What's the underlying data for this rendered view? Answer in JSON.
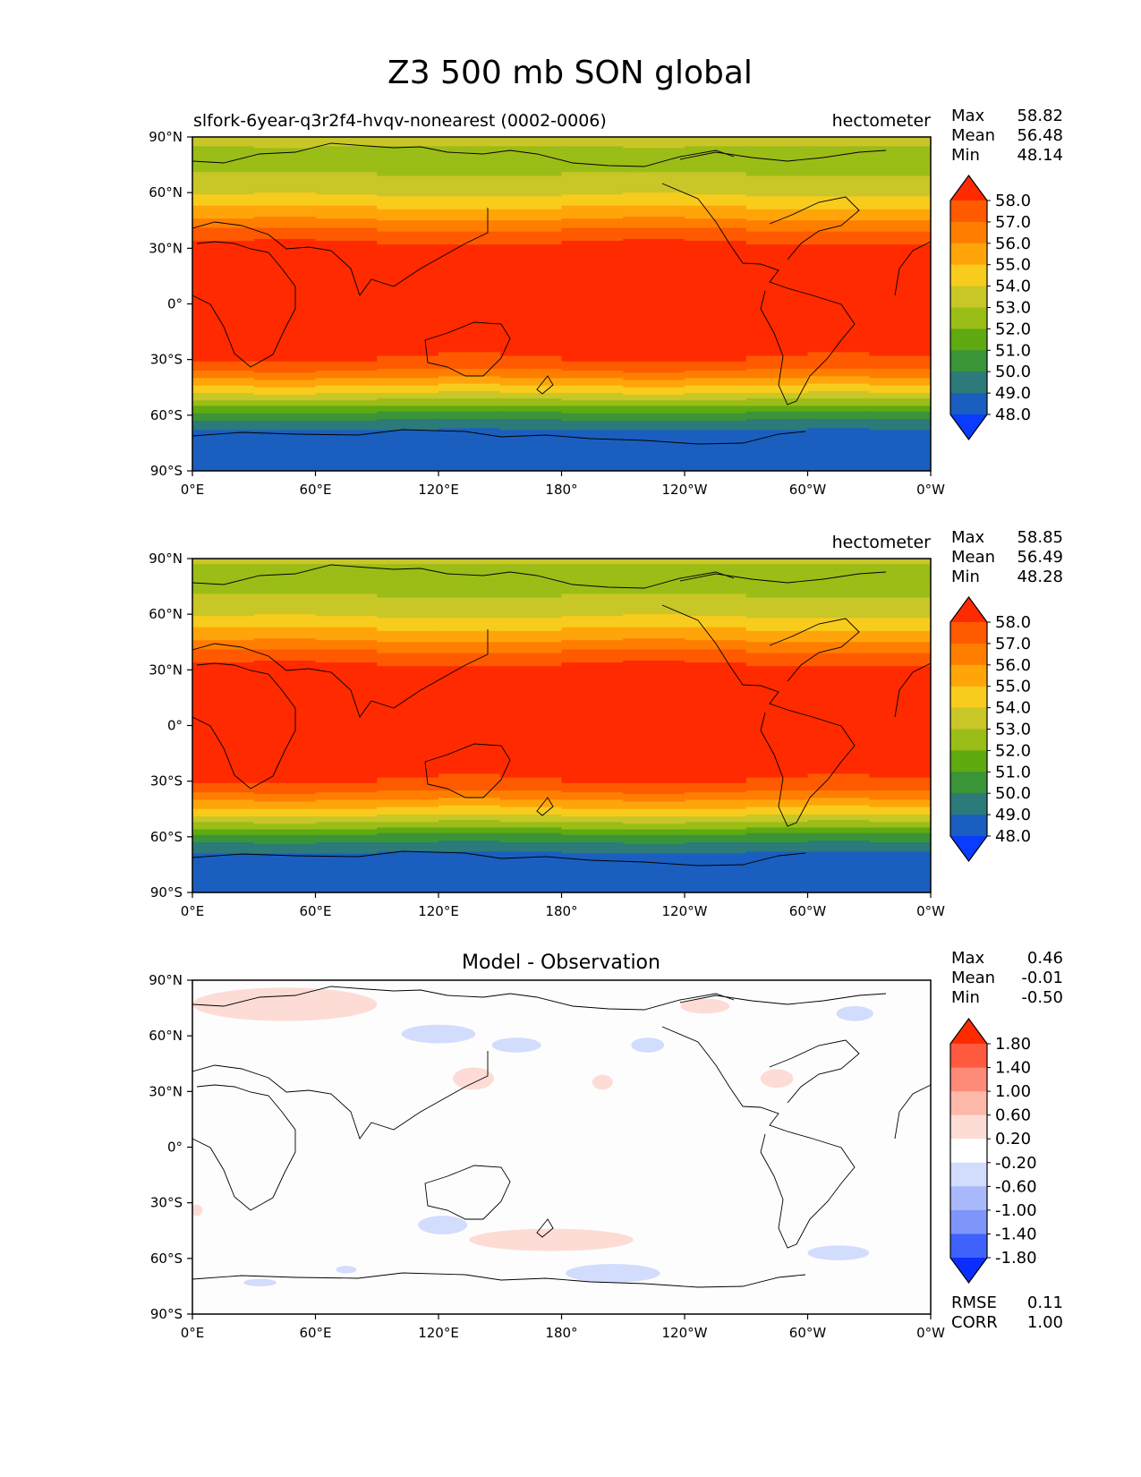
{
  "figure": {
    "title": "Z3 500 mb SON global"
  },
  "axes_ticks": {
    "lat_labels": [
      "90°N",
      "60°N",
      "30°N",
      "0°",
      "30°S",
      "60°S",
      "90°S"
    ],
    "lon_labels": [
      "0°E",
      "60°E",
      "120°E",
      "180°",
      "120°W",
      "60°W",
      "0°W"
    ]
  },
  "panels": [
    {
      "name": "model",
      "left_title": "slfork-6year-q3r2f4-hvqv-nonearest (0002-0006)",
      "center_title": "",
      "units": "hectometer",
      "stats": {
        "max_label": "Max",
        "max": "58.82",
        "mean_label": "Mean",
        "mean": "56.48",
        "min_label": "Min",
        "min": "48.14"
      },
      "colorbar": {
        "levels": [
          "58.0",
          "57.0",
          "56.0",
          "55.0",
          "54.0",
          "53.0",
          "52.0",
          "51.0",
          "50.0",
          "49.0",
          "48.0"
        ],
        "colors": [
          "#ff2a00",
          "#ff5a00",
          "#ff7e00",
          "#ffa50a",
          "#f8cc1c",
          "#c9c628",
          "#9bbd17",
          "#5eaa10",
          "#3a9438",
          "#2c7a7a",
          "#1a5fbf",
          "#0a3cff"
        ]
      }
    },
    {
      "name": "observation",
      "left_title": "",
      "center_title": "",
      "units": "hectometer",
      "stats": {
        "max_label": "Max",
        "max": "58.85",
        "mean_label": "Mean",
        "mean": "56.49",
        "min_label": "Min",
        "min": "48.28"
      },
      "colorbar": {
        "levels": [
          "58.0",
          "57.0",
          "56.0",
          "55.0",
          "54.0",
          "53.0",
          "52.0",
          "51.0",
          "50.0",
          "49.0",
          "48.0"
        ],
        "colors": [
          "#ff2a00",
          "#ff5a00",
          "#ff7e00",
          "#ffa50a",
          "#f8cc1c",
          "#c9c628",
          "#9bbd17",
          "#5eaa10",
          "#3a9438",
          "#2c7a7a",
          "#1a5fbf",
          "#0a3cff"
        ]
      }
    },
    {
      "name": "difference",
      "left_title": "",
      "center_title": "Model - Observation",
      "units": "",
      "stats": {
        "max_label": "Max",
        "max": "0.46",
        "mean_label": "Mean",
        "mean": "-0.01",
        "min_label": "Min",
        "min": "-0.50"
      },
      "colorbar": {
        "levels": [
          "1.80",
          "1.40",
          "1.00",
          "0.60",
          "0.20",
          "-0.20",
          "-0.60",
          "-1.00",
          "-1.40",
          "-1.80"
        ],
        "colors": [
          "#ff2a00",
          "#fe5a40",
          "#fe8a78",
          "#fdb8aa",
          "#fddcd6",
          "#ffffff",
          "#d2dcfc",
          "#a9b8fb",
          "#7f95fa",
          "#3f62fd",
          "#0a2eff"
        ]
      },
      "metrics": {
        "rmse_label": "RMSE",
        "rmse": "0.11",
        "corr_label": "CORR",
        "corr": "1.00"
      }
    }
  ],
  "chart_data": [
    {
      "type": "heatmap",
      "title": "slfork-6year-q3r2f4-hvqv-nonearest (0002-0006)",
      "units": "hectometer",
      "x_range": [
        0,
        360
      ],
      "y_range": [
        -90,
        90
      ],
      "levels": [
        48,
        49,
        50,
        51,
        52,
        53,
        54,
        55,
        56,
        57,
        58
      ],
      "zonal_profile": {
        "lat": [
          90,
          75,
          60,
          50,
          40,
          35,
          30,
          20,
          0,
          -20,
          -30,
          -35,
          -40,
          -50,
          -60,
          -65,
          -70,
          -90
        ],
        "z": [
          53.2,
          52.6,
          53.8,
          55.3,
          57.0,
          57.8,
          58.4,
          58.7,
          58.7,
          58.6,
          58.0,
          57.2,
          56.0,
          53.5,
          50.5,
          49.5,
          48.6,
          48.4
        ]
      },
      "stats": {
        "max": 58.82,
        "mean": 56.48,
        "min": 48.14
      }
    },
    {
      "type": "heatmap",
      "title": "",
      "units": "hectometer",
      "x_range": [
        0,
        360
      ],
      "y_range": [
        -90,
        90
      ],
      "levels": [
        48,
        49,
        50,
        51,
        52,
        53,
        54,
        55,
        56,
        57,
        58
      ],
      "zonal_profile": {
        "lat": [
          90,
          75,
          60,
          50,
          40,
          35,
          30,
          20,
          0,
          -20,
          -30,
          -35,
          -40,
          -50,
          -60,
          -65,
          -70,
          -90
        ],
        "z": [
          53.1,
          52.6,
          53.8,
          55.3,
          57.0,
          57.8,
          58.4,
          58.7,
          58.7,
          58.6,
          58.0,
          57.2,
          56.0,
          53.6,
          50.6,
          49.6,
          48.7,
          48.5
        ]
      },
      "stats": {
        "max": 58.85,
        "mean": 56.49,
        "min": 48.28
      }
    },
    {
      "type": "heatmap",
      "title": "Model - Observation",
      "x_range": [
        0,
        360
      ],
      "y_range": [
        -90,
        90
      ],
      "levels": [
        -1.8,
        -1.4,
        -1.0,
        -0.6,
        -0.2,
        0.2,
        0.6,
        1.0,
        1.4,
        1.8
      ],
      "anomalies": [
        {
          "lon": 45,
          "lat": 77,
          "sign": "positive"
        },
        {
          "lon": 137,
          "lat": 37,
          "sign": "positive"
        },
        {
          "lon": 200,
          "lat": 35,
          "sign": "positive"
        },
        {
          "lon": 285,
          "lat": 37,
          "sign": "positive"
        },
        {
          "lon": 250,
          "lat": 76,
          "sign": "positive"
        },
        {
          "lon": 175,
          "lat": -50,
          "sign": "positive"
        },
        {
          "lon": 2,
          "lat": -34,
          "sign": "positive"
        },
        {
          "lon": 120,
          "lat": 61,
          "sign": "negative"
        },
        {
          "lon": 158,
          "lat": 55,
          "sign": "negative"
        },
        {
          "lon": 222,
          "lat": 55,
          "sign": "negative"
        },
        {
          "lon": 323,
          "lat": 72,
          "sign": "negative"
        },
        {
          "lon": 122,
          "lat": -42,
          "sign": "negative"
        },
        {
          "lon": 205,
          "lat": -68,
          "sign": "negative"
        },
        {
          "lon": 315,
          "lat": -57,
          "sign": "negative"
        },
        {
          "lon": 33,
          "lat": -73,
          "sign": "negative"
        },
        {
          "lon": 75,
          "lat": -66,
          "sign": "negative"
        }
      ],
      "stats": {
        "max": 0.46,
        "mean": -0.01,
        "min": -0.5,
        "rmse": 0.11,
        "corr": 1.0
      }
    }
  ]
}
